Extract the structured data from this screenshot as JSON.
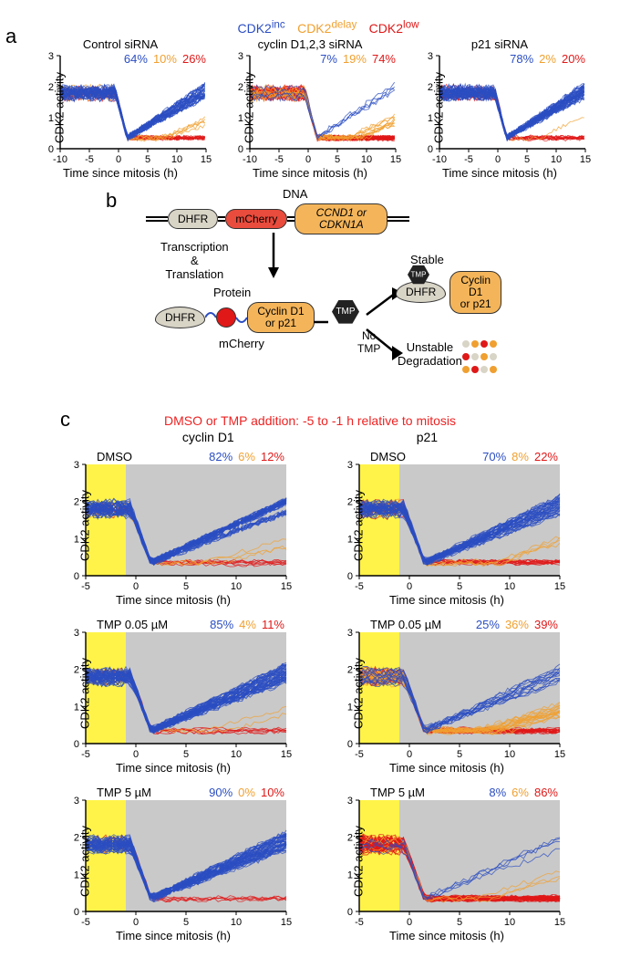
{
  "colors": {
    "inc": "#2b4ec2",
    "delay": "#f0a030",
    "low": "#e01818",
    "yellow_band": "#fff34a",
    "gray_band": "#c9c9c9",
    "axis": "#000000"
  },
  "legend": {
    "inc": "CDK2",
    "inc_sup": "inc",
    "delay": "CDK2",
    "delay_sup": "delay",
    "low": "CDK2",
    "low_sup": "low"
  },
  "axes": {
    "ylabel": "CDK2 activity",
    "xlabel": "Time since mitosis (h)",
    "xlim": [
      -10,
      15
    ],
    "xlim_c": [
      -5,
      15
    ],
    "ylim": [
      0,
      3
    ],
    "yticks": [
      0,
      1,
      2,
      3
    ],
    "xticks_a": [
      -10,
      -5,
      0,
      5,
      10,
      15
    ],
    "xticks_c": [
      -5,
      0,
      5,
      10,
      15
    ]
  },
  "panel_a": {
    "charts": [
      {
        "title": "Control siRNA",
        "pct": {
          "inc": "64%",
          "delay": "10%",
          "low": "26%"
        },
        "mix": {
          "inc": 0.64,
          "delay": 0.1,
          "low": 0.26
        }
      },
      {
        "title": "cyclin D1,2,3 siRNA",
        "pct": {
          "inc": "7%",
          "delay": "19%",
          "low": "74%"
        },
        "mix": {
          "inc": 0.07,
          "delay": 0.19,
          "low": 0.74
        }
      },
      {
        "title": "p21 siRNA",
        "pct": {
          "inc": "78%",
          "delay": "2%",
          "low": "20%"
        },
        "mix": {
          "inc": 0.78,
          "delay": 0.02,
          "low": 0.2
        }
      }
    ]
  },
  "panel_b": {
    "dna_label": "DNA",
    "dhfr": "DHFR",
    "mcherry": "mCherry",
    "gene_text": "CCND1 or CDKN1A",
    "transcription": "Transcription\n&\nTranslation",
    "protein": "Protein",
    "cyc_text": "Cyclin D1\nor p21",
    "tmp": "TMP",
    "stable": "Stable",
    "no_tmp": "No\nTMP",
    "unstable": "Unstable\nDegradation"
  },
  "panel_c": {
    "header": "DMSO or TMP addition: -5 to -1 h relative to mitosis",
    "col_left": "cyclin D1",
    "col_right": "p21",
    "rows": [
      {
        "label": "DMSO",
        "left": {
          "pct": {
            "inc": "82%",
            "delay": "6%",
            "low": "12%"
          },
          "mix": {
            "inc": 0.82,
            "delay": 0.06,
            "low": 0.12
          }
        },
        "right": {
          "pct": {
            "inc": "70%",
            "delay": "8%",
            "low": "22%"
          },
          "mix": {
            "inc": 0.7,
            "delay": 0.08,
            "low": 0.22
          }
        }
      },
      {
        "label": "TMP 0.05 µM",
        "left": {
          "pct": {
            "inc": "85%",
            "delay": "4%",
            "low": "11%"
          },
          "mix": {
            "inc": 0.85,
            "delay": 0.04,
            "low": 0.11
          }
        },
        "right": {
          "pct": {
            "inc": "25%",
            "delay": "36%",
            "low": "39%"
          },
          "mix": {
            "inc": 0.25,
            "delay": 0.36,
            "low": 0.39
          }
        }
      },
      {
        "label": "TMP 5 µM",
        "left": {
          "pct": {
            "inc": "90%",
            "delay": "0%",
            "low": "10%"
          },
          "mix": {
            "inc": 0.9,
            "delay": 0.0,
            "low": 0.1
          }
        },
        "right": {
          "pct": {
            "inc": "8%",
            "delay": "6%",
            "low": "86%"
          },
          "mix": {
            "inc": 0.08,
            "delay": 0.06,
            "low": 0.86
          }
        }
      }
    ]
  },
  "traces": {
    "n_per_type": 18,
    "pre_level": 1.8,
    "dip_level": 0.35,
    "inc_end": 1.9,
    "delay_end": 0.9,
    "low_end": 0.35,
    "noise": 0.14
  }
}
